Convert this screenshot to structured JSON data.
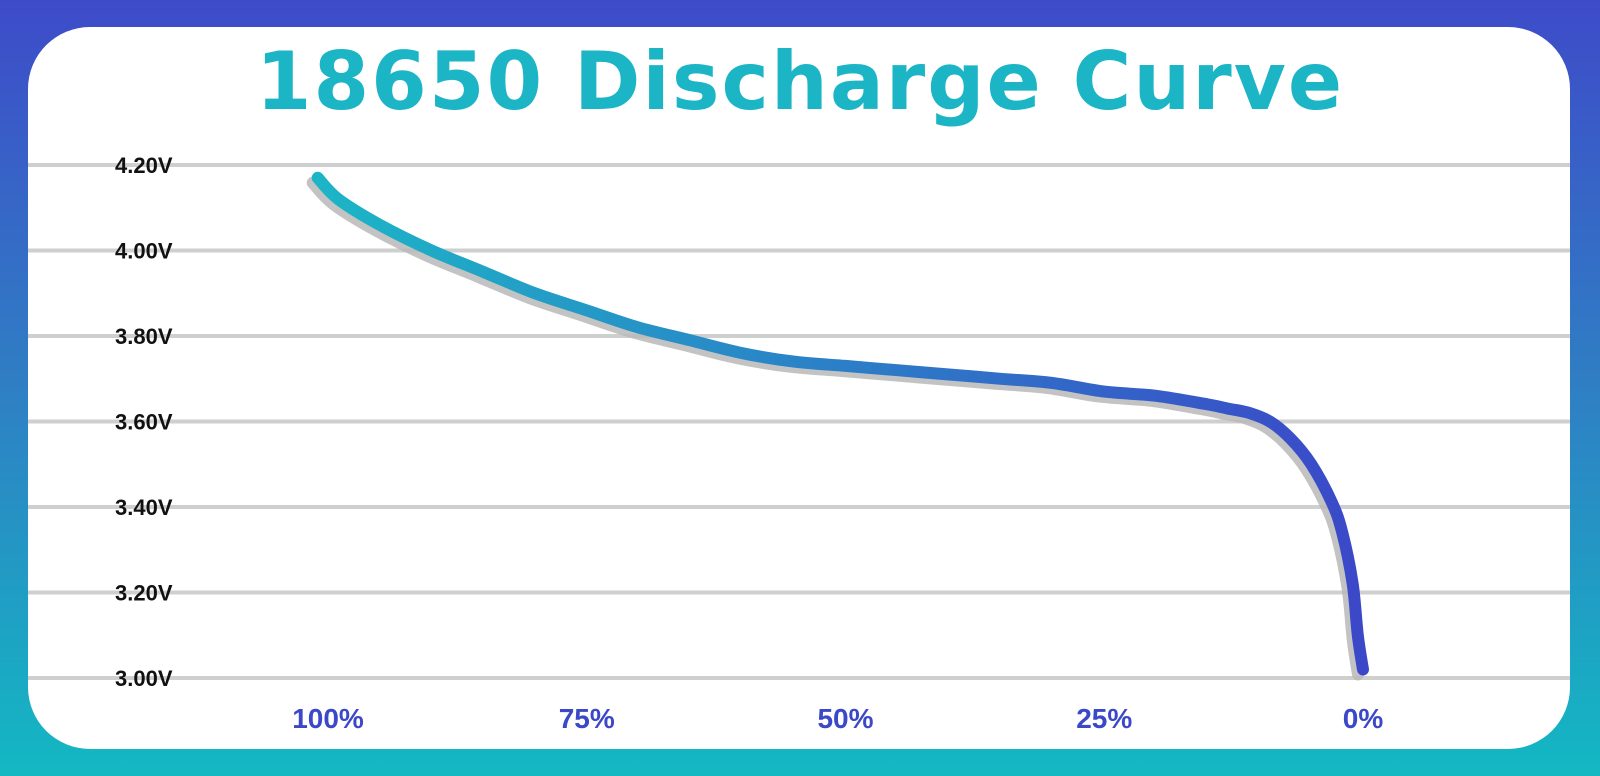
{
  "colors": {
    "background_top": "#3e4bc9",
    "background_bottom": "#13b8c3",
    "title": "#1cb5c6",
    "curve_start": "#1cb5c6",
    "curve_end": "#3b48c8",
    "grid": "#cfcfcf",
    "x_tick_labels": "#3b48c8",
    "y_tick_labels": "#111111"
  },
  "chart_data": {
    "type": "line",
    "title": "18650 Discharge Curve",
    "xlabel": "",
    "ylabel": "",
    "x_axis": {
      "reversed": true,
      "ticks": [
        100,
        75,
        50,
        25,
        0
      ],
      "tick_labels": [
        "100%",
        "75%",
        "50%",
        "25%",
        "0%"
      ]
    },
    "y_axis": {
      "ylim": [
        3.0,
        4.2
      ],
      "ticks": [
        4.2,
        4.0,
        3.8,
        3.6,
        3.4,
        3.2,
        3.0
      ],
      "tick_labels": [
        "4.20V",
        "4.00V",
        "3.80V",
        "3.60V",
        "3.40V",
        "3.20V",
        "3.00V"
      ]
    },
    "grid": true,
    "legend": "none",
    "series": [
      {
        "x": [
          101,
          99,
          95,
          90,
          85,
          80,
          75,
          70,
          65,
          60,
          55,
          50,
          45,
          40,
          35,
          30,
          25,
          20,
          15,
          13,
          11,
          9,
          7,
          5,
          3,
          2,
          1,
          0.5,
          0
        ],
        "y": [
          4.17,
          4.12,
          4.06,
          4.0,
          3.95,
          3.9,
          3.86,
          3.82,
          3.79,
          3.76,
          3.74,
          3.73,
          3.72,
          3.71,
          3.7,
          3.69,
          3.67,
          3.66,
          3.64,
          3.63,
          3.62,
          3.6,
          3.56,
          3.5,
          3.41,
          3.34,
          3.22,
          3.1,
          3.02
        ]
      }
    ]
  }
}
